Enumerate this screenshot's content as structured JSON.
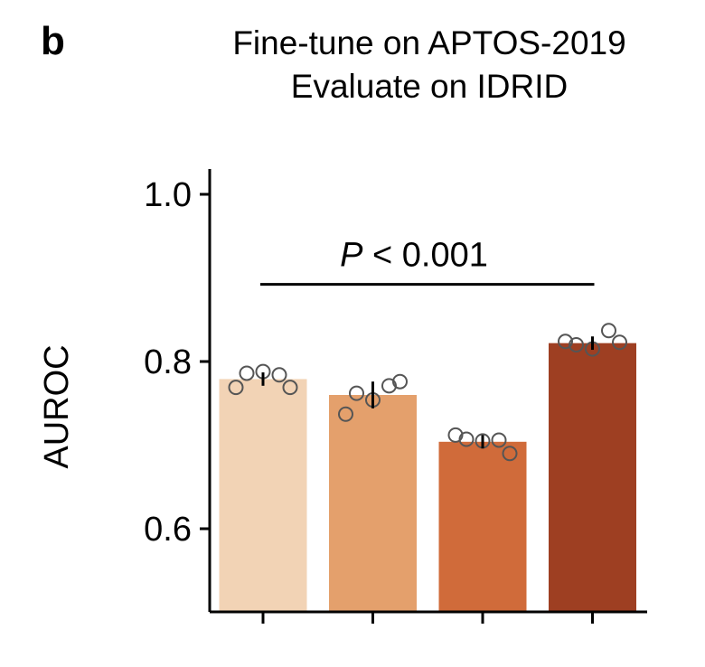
{
  "panel_label": "b",
  "chart_data": {
    "type": "bar",
    "title_lines": [
      "Fine-tune on APTOS-2019",
      "Evaluate on IDRID"
    ],
    "xlabel": "",
    "ylabel": "AUROC",
    "ylim": [
      0.5,
      1.03
    ],
    "yticks": [
      0.6,
      0.8,
      1.0
    ],
    "ytick_labels": [
      "0.6",
      "0.8",
      "1.0"
    ],
    "grid": false,
    "legend": "none",
    "categories": [
      "",
      "",
      "",
      ""
    ],
    "values": [
      0.779,
      0.76,
      0.704,
      0.822
    ],
    "errors": [
      0.008,
      0.016,
      0.008,
      0.008
    ],
    "colors": [
      "#f2d3b5",
      "#e4a06c",
      "#d06b3a",
      "#9e3f22"
    ],
    "points": [
      [
        0.769,
        0.786,
        0.788,
        0.784,
        0.769
      ],
      [
        0.737,
        0.762,
        0.754,
        0.771,
        0.776
      ],
      [
        0.712,
        0.707,
        0.705,
        0.706,
        0.69
      ],
      [
        0.824,
        0.82,
        0.815,
        0.837,
        0.823
      ]
    ],
    "significance": {
      "text_italic": "P",
      "text_rest": " < 0.001",
      "from_bar": 0,
      "to_bar": 3,
      "y": 0.875
    }
  }
}
